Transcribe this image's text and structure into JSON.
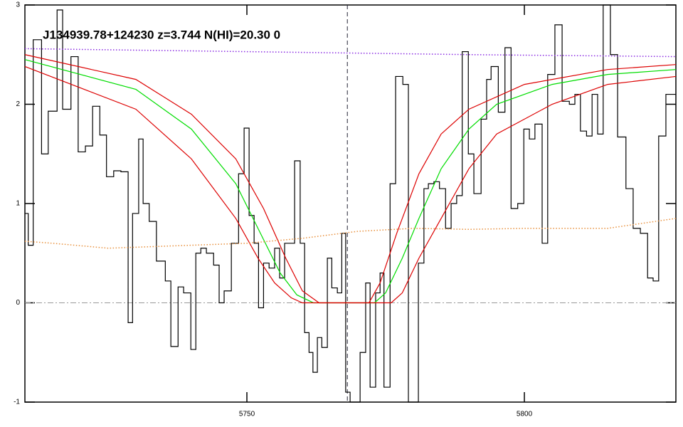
{
  "chart_data": {
    "type": "line",
    "title": "J134939.78+124230 z=3.744 N(HI)=20.30 0",
    "xlim": [
      5710,
      5827.3
    ],
    "ylim": [
      -1,
      3
    ],
    "xticks": [
      5750,
      5800
    ],
    "yticks": [
      -1,
      0,
      1,
      2,
      3
    ],
    "zero_line": true,
    "vline": 5768.1,
    "series": [
      {
        "color": "#000000",
        "style": "step",
        "x": [
          5710.0,
          5710.6,
          5711.5,
          5713.0,
          5714.2,
          5715.8,
          5716.8,
          5718.3,
          5719.6,
          5720.9,
          5722.2,
          5723.5,
          5724.7,
          5726.0,
          5727.3,
          5728.6,
          5729.4,
          5730.5,
          5731.3,
          5732.4,
          5733.7,
          5735.3,
          5736.3,
          5737.6,
          5738.6,
          5739.9,
          5740.8,
          5741.7,
          5742.7,
          5744.0,
          5745.0,
          5745.9,
          5747.2,
          5748.5,
          5749.5,
          5750.4,
          5751.3,
          5752.1,
          5753.0,
          5754.0,
          5755.0,
          5755.9,
          5756.8,
          5757.8,
          5758.6,
          5759.6,
          5760.4,
          5761.2,
          5761.9,
          5762.7,
          5763.5,
          5764.5,
          5765.3,
          5766.3,
          5767.1,
          5767.8,
          5768.6,
          5769.4,
          5770.4,
          5771.4,
          5772.2,
          5773.2,
          5774.0,
          5774.7,
          5775.8,
          5776.8,
          5778.1,
          5779.1,
          5780.9,
          5781.9,
          5782.7,
          5783.7,
          5784.7,
          5785.8,
          5786.8,
          5787.8,
          5788.8,
          5789.9,
          5790.9,
          5792.2,
          5793.2,
          5794.0,
          5795.3,
          5796.5,
          5797.6,
          5798.8,
          5799.9,
          5800.9,
          5801.9,
          5803.2,
          5804.2,
          5805.5,
          5806.8,
          5808.1,
          5809.1,
          5810.1,
          5811.2,
          5812.2,
          5813.2,
          5814.2,
          5815.5,
          5816.8,
          5818.3,
          5819.6,
          5820.9,
          5822.2,
          5823.2,
          5824.2,
          5825.5,
          5826.5
        ],
        "values": [
          0.9,
          0.58,
          2.65,
          1.5,
          1.93,
          2.95,
          1.95,
          2.48,
          1.52,
          1.58,
          1.98,
          1.69,
          1.27,
          1.33,
          1.32,
          -0.2,
          0.9,
          1.65,
          1.0,
          0.82,
          0.42,
          0.22,
          -0.44,
          0.16,
          0.1,
          -0.47,
          0.5,
          0.55,
          0.5,
          0.38,
          0.0,
          0.12,
          0.6,
          1.3,
          1.76,
          0.88,
          0.6,
          -0.05,
          0.4,
          0.35,
          0.55,
          0.25,
          0.6,
          0.6,
          1.43,
          0.6,
          -0.3,
          -0.5,
          -0.7,
          -0.35,
          -0.45,
          0.45,
          0.15,
          0.1,
          0.7,
          -0.9,
          -1.0,
          -1.0,
          -0.5,
          0.2,
          -0.85,
          0.1,
          0.3,
          -0.85,
          1.2,
          2.28,
          2.2,
          -1.0,
          0.4,
          1.15,
          1.2,
          1.22,
          1.15,
          0.75,
          1.0,
          1.08,
          2.53,
          1.5,
          1.1,
          1.85,
          2.25,
          2.38,
          1.92,
          2.57,
          0.95,
          1.0,
          1.75,
          1.65,
          1.8,
          0.6,
          2.3,
          2.8,
          2.03,
          2.0,
          2.1,
          1.73,
          1.68,
          2.1,
          1.7,
          3.0,
          2.5,
          1.67,
          1.15,
          0.75,
          0.7,
          0.25,
          0.22,
          1.68,
          2.1,
          2.1
        ]
      },
      {
        "color": "#00dd00",
        "style": "solid",
        "x": [
          5710,
          5730,
          5740,
          5748,
          5752,
          5756,
          5759,
          5762,
          5773,
          5775,
          5778,
          5781,
          5785,
          5790,
          5795,
          5805,
          5815,
          5827.3
        ],
        "values": [
          2.45,
          2.15,
          1.75,
          1.2,
          0.75,
          0.3,
          0.08,
          0,
          0,
          0.1,
          0.45,
          0.85,
          1.35,
          1.75,
          2.0,
          2.2,
          2.3,
          2.35
        ]
      },
      {
        "color": "#dd0000",
        "style": "solid",
        "x": [
          5710,
          5730,
          5740,
          5748,
          5753,
          5757,
          5760,
          5763,
          5772,
          5774,
          5777,
          5781,
          5785,
          5790,
          5800,
          5815,
          5827.3
        ],
        "values": [
          2.5,
          2.25,
          1.9,
          1.45,
          0.95,
          0.45,
          0.12,
          0,
          0,
          0.2,
          0.7,
          1.3,
          1.7,
          1.95,
          2.2,
          2.35,
          2.4
        ]
      },
      {
        "color": "#dd0000",
        "style": "solid",
        "x": [
          5710,
          5730,
          5740,
          5748,
          5752,
          5755,
          5758,
          5760,
          5776,
          5778,
          5781,
          5785,
          5790,
          5795,
          5805,
          5815,
          5827.3
        ],
        "values": [
          2.38,
          1.95,
          1.45,
          0.85,
          0.45,
          0.2,
          0.05,
          0,
          0,
          0.1,
          0.45,
          0.85,
          1.35,
          1.7,
          2.0,
          2.2,
          2.28
        ]
      },
      {
        "color": "#8a2be2",
        "style": "dotted",
        "x": [
          5710,
          5750,
          5790,
          5827.3
        ],
        "values": [
          2.56,
          2.53,
          2.5,
          2.48
        ]
      },
      {
        "color": "#e8903c",
        "style": "dotted",
        "x": [
          5710,
          5715,
          5725,
          5735,
          5750,
          5760,
          5770,
          5780,
          5790,
          5800,
          5815,
          5827.3
        ],
        "values": [
          0.62,
          0.6,
          0.55,
          0.57,
          0.6,
          0.65,
          0.72,
          0.75,
          0.74,
          0.75,
          0.75,
          0.85
        ]
      }
    ]
  }
}
